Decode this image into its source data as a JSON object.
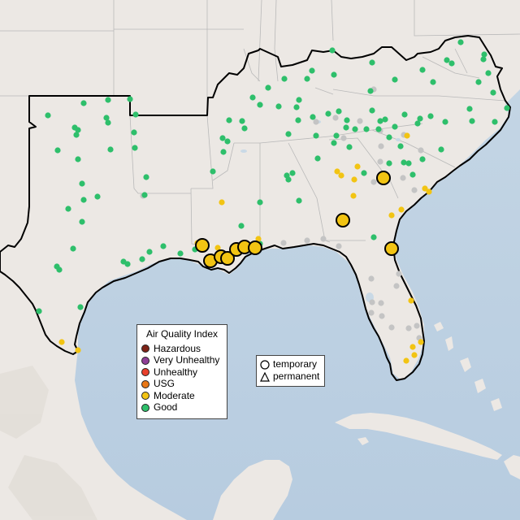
{
  "map": {
    "land_color": "#ece8e4",
    "water_color": "#c9d9e6",
    "dark_water_color": "#b8cde0"
  },
  "legend": {
    "title": "Air Quality Index",
    "categories": [
      {
        "label": "Hazardous",
        "color": "#7e2418"
      },
      {
        "label": "Very Unhealthy",
        "color": "#8f3f97"
      },
      {
        "label": "Unhealthy",
        "color": "#e8402c"
      },
      {
        "label": "USG",
        "color": "#e87716"
      },
      {
        "label": "Moderate",
        "color": "#f2c413"
      },
      {
        "label": "Good",
        "color": "#2ebf6b"
      }
    ]
  },
  "shape_legend": {
    "temporary": "temporary",
    "permanent": "permanent"
  },
  "monitors": {
    "good": [
      [
        409,
        62
      ],
      [
        458,
        77
      ],
      [
        384,
        87
      ],
      [
        378,
        97
      ],
      [
        350,
        97
      ],
      [
        411,
        92
      ],
      [
        330,
        108
      ],
      [
        311,
        120
      ],
      [
        103,
        127
      ],
      [
        133,
        123
      ],
      [
        160,
        122
      ],
      [
        59,
        142
      ],
      [
        92,
        157
      ],
      [
        96,
        160
      ],
      [
        94,
        166
      ],
      [
        131,
        145
      ],
      [
        133,
        151
      ],
      [
        167,
        141
      ],
      [
        165,
        163
      ],
      [
        71,
        185
      ],
      [
        96,
        196
      ],
      [
        136,
        184
      ],
      [
        166,
        182
      ],
      [
        274,
        170
      ],
      [
        280,
        174
      ],
      [
        275,
        187
      ],
      [
        282,
        148
      ],
      [
        298,
        149
      ],
      [
        301,
        158
      ],
      [
        320,
        129
      ],
      [
        343,
        131
      ],
      [
        365,
        132
      ],
      [
        368,
        123
      ],
      [
        367,
        148
      ],
      [
        355,
        165
      ],
      [
        385,
        144
      ],
      [
        389,
        167
      ],
      [
        404,
        140
      ],
      [
        417,
        137
      ],
      [
        427,
        148
      ],
      [
        426,
        157
      ],
      [
        414,
        167
      ],
      [
        437,
        159
      ],
      [
        451,
        159
      ],
      [
        468,
        149
      ],
      [
        474,
        147
      ],
      [
        486,
        156
      ],
      [
        479,
        169
      ],
      [
        493,
        180
      ],
      [
        517,
        146
      ],
      [
        530,
        143
      ],
      [
        514,
        152
      ],
      [
        548,
        150
      ],
      [
        498,
        141
      ],
      [
        458,
        136
      ],
      [
        411,
        176
      ],
      [
        391,
        195
      ],
      [
        360,
        213
      ],
      [
        353,
        216
      ],
      [
        355,
        221
      ],
      [
        368,
        247
      ],
      [
        320,
        249
      ],
      [
        297,
        278
      ],
      [
        262,
        211
      ],
      [
        180,
        218
      ],
      [
        178,
        240
      ],
      [
        101,
        226
      ],
      [
        103,
        246
      ],
      [
        120,
        242
      ],
      [
        84,
        257
      ],
      [
        101,
        273
      ],
      [
        90,
        306
      ],
      [
        70,
        328
      ],
      [
        73,
        332
      ],
      [
        152,
        322
      ],
      [
        157,
        325
      ],
      [
        175,
        319
      ],
      [
        184,
        310
      ],
      [
        201,
        303
      ],
      [
        222,
        312
      ],
      [
        240,
        307
      ],
      [
        300,
        305
      ],
      [
        320,
        300
      ],
      [
        466,
        159
      ],
      [
        497,
        200
      ],
      [
        520,
        196
      ],
      [
        543,
        184
      ],
      [
        581,
        149
      ],
      [
        609,
        150
      ],
      [
        578,
        134
      ],
      [
        567,
        52
      ],
      [
        596,
        67
      ],
      [
        595,
        73
      ],
      [
        550,
        74
      ],
      [
        520,
        86
      ],
      [
        533,
        101
      ],
      [
        486,
        98
      ],
      [
        456,
        112
      ],
      [
        589,
        101
      ],
      [
        607,
        114
      ],
      [
        601,
        90
      ],
      [
        624,
        133
      ],
      [
        460,
        292
      ],
      [
        478,
        303
      ],
      [
        48,
        383
      ],
      [
        99,
        378
      ],
      [
        430,
        181
      ],
      [
        448,
        213
      ],
      [
        479,
        201
      ],
      [
        503,
        201
      ],
      [
        508,
        215
      ],
      [
        556,
        78
      ]
    ],
    "moderate": [
      [
        273,
        249
      ],
      [
        243,
        299
      ],
      [
        268,
        305
      ],
      [
        275,
        314
      ],
      [
        435,
        241
      ],
      [
        436,
        221
      ],
      [
        440,
        205
      ],
      [
        415,
        211
      ],
      [
        420,
        216
      ],
      [
        482,
        265
      ],
      [
        494,
        258
      ],
      [
        501,
        167
      ],
      [
        523,
        232
      ],
      [
        528,
        236
      ],
      [
        318,
        294
      ],
      [
        76,
        421
      ],
      [
        96,
        431
      ],
      [
        506,
        370
      ],
      [
        508,
        427
      ],
      [
        518,
        421
      ],
      [
        510,
        437
      ],
      [
        500,
        444
      ]
    ],
    "gray": [
      [
        176,
        241
      ],
      [
        349,
        299
      ],
      [
        378,
        296
      ],
      [
        398,
        294
      ],
      [
        460,
        110
      ],
      [
        413,
        145
      ],
      [
        443,
        149
      ],
      [
        468,
        199
      ],
      [
        469,
        180
      ],
      [
        497,
        166
      ],
      [
        518,
        185
      ],
      [
        460,
        224
      ],
      [
        510,
        234
      ],
      [
        496,
        219
      ],
      [
        473,
        215
      ],
      [
        417,
        303
      ],
      [
        457,
        343
      ],
      [
        469,
        373
      ],
      [
        470,
        389
      ],
      [
        488,
        352
      ],
      [
        491,
        337
      ],
      [
        458,
        372
      ],
      [
        457,
        385
      ],
      [
        503,
        404
      ],
      [
        482,
        403
      ],
      [
        513,
        401
      ],
      [
        516,
        416
      ],
      [
        468,
        161
      ],
      [
        389,
        150
      ],
      [
        423,
        170
      ]
    ],
    "large": [
      [
        249,
        302
      ],
      [
        259,
        321
      ],
      [
        272,
        316
      ],
      [
        280,
        318
      ],
      [
        291,
        307
      ],
      [
        301,
        304
      ],
      [
        314,
        305
      ],
      [
        472,
        219
      ],
      [
        422,
        271
      ],
      [
        482,
        306
      ]
    ]
  }
}
